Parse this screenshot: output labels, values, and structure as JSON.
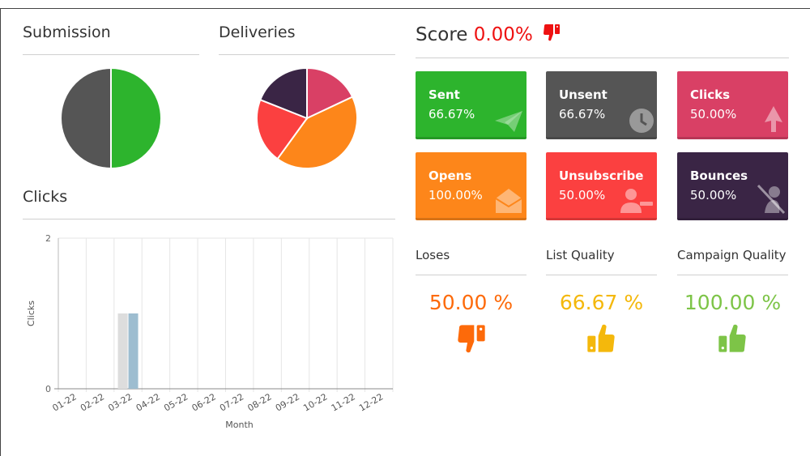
{
  "submission": {
    "title": "Submission",
    "colors": {
      "unsent": "#555555",
      "sent": "#2db42d"
    }
  },
  "deliveries": {
    "title": "Deliveries",
    "colors": [
      "#d94065",
      "#fd861a",
      "#fb4040",
      "#3a2545"
    ]
  },
  "clicks_section": {
    "title": "Clicks"
  },
  "score": {
    "label": "Score",
    "value": "0.00%",
    "icon": "thumbs-down-icon"
  },
  "cards": [
    {
      "key": "sent",
      "title": "Sent",
      "value": "66.67%",
      "color": "#2db42d",
      "icon": "paper-plane-icon"
    },
    {
      "key": "unsent",
      "title": "Unsent",
      "value": "66.67%",
      "color": "#555555",
      "icon": "clock-icon"
    },
    {
      "key": "clicks",
      "title": "Clicks",
      "value": "50.00%",
      "color": "#d94065",
      "icon": "cursor-icon"
    },
    {
      "key": "opens",
      "title": "Opens",
      "value": "100.00%",
      "color": "#fd861a",
      "icon": "open-envelope-icon"
    },
    {
      "key": "unsubscribe",
      "title": "Unsubscribe",
      "value": "50.00%",
      "color": "#fb4040",
      "icon": "user-minus-icon"
    },
    {
      "key": "bounces",
      "title": "Bounces",
      "value": "50.00%",
      "color": "#3a2545",
      "icon": "bounce-icon"
    }
  ],
  "metrics": [
    {
      "label": "Loses",
      "value": "50.00 %",
      "color": "#fd6a0a",
      "icon": "thumbs-down-icon"
    },
    {
      "label": "List Quality",
      "value": "66.67 %",
      "color": "#f4b80c",
      "icon": "thumbs-up-icon"
    },
    {
      "label": "Campaign Quality",
      "value": "100.00 %",
      "color": "#7dc447",
      "icon": "thumbs-up-icon"
    }
  ],
  "chart_data": [
    {
      "type": "pie",
      "title": "Submission",
      "categories": [
        "Sent",
        "Unsent"
      ],
      "values": [
        50,
        50
      ]
    },
    {
      "type": "pie",
      "title": "Deliveries",
      "values": [
        18,
        42,
        21,
        19
      ]
    },
    {
      "type": "bar",
      "title": "Clicks",
      "categories": [
        "01-22",
        "02-22",
        "03-22",
        "04-22",
        "05-22",
        "06-22",
        "07-22",
        "08-22",
        "09-22",
        "10-22",
        "11-22",
        "12-22"
      ],
      "series": [
        {
          "values": [
            0,
            0,
            1,
            0,
            0,
            0,
            0,
            0,
            0,
            0,
            0,
            0
          ],
          "color": "#dddddd"
        },
        {
          "values": [
            0,
            0,
            1,
            0,
            0,
            0,
            0,
            0,
            0,
            0,
            0,
            0
          ],
          "color": "#9dbdd0"
        }
      ],
      "xlabel": "Month",
      "ylabel": "Clicks",
      "ylim": [
        0,
        2
      ],
      "yticks": [
        "0",
        "2"
      ],
      "grid": true
    }
  ]
}
